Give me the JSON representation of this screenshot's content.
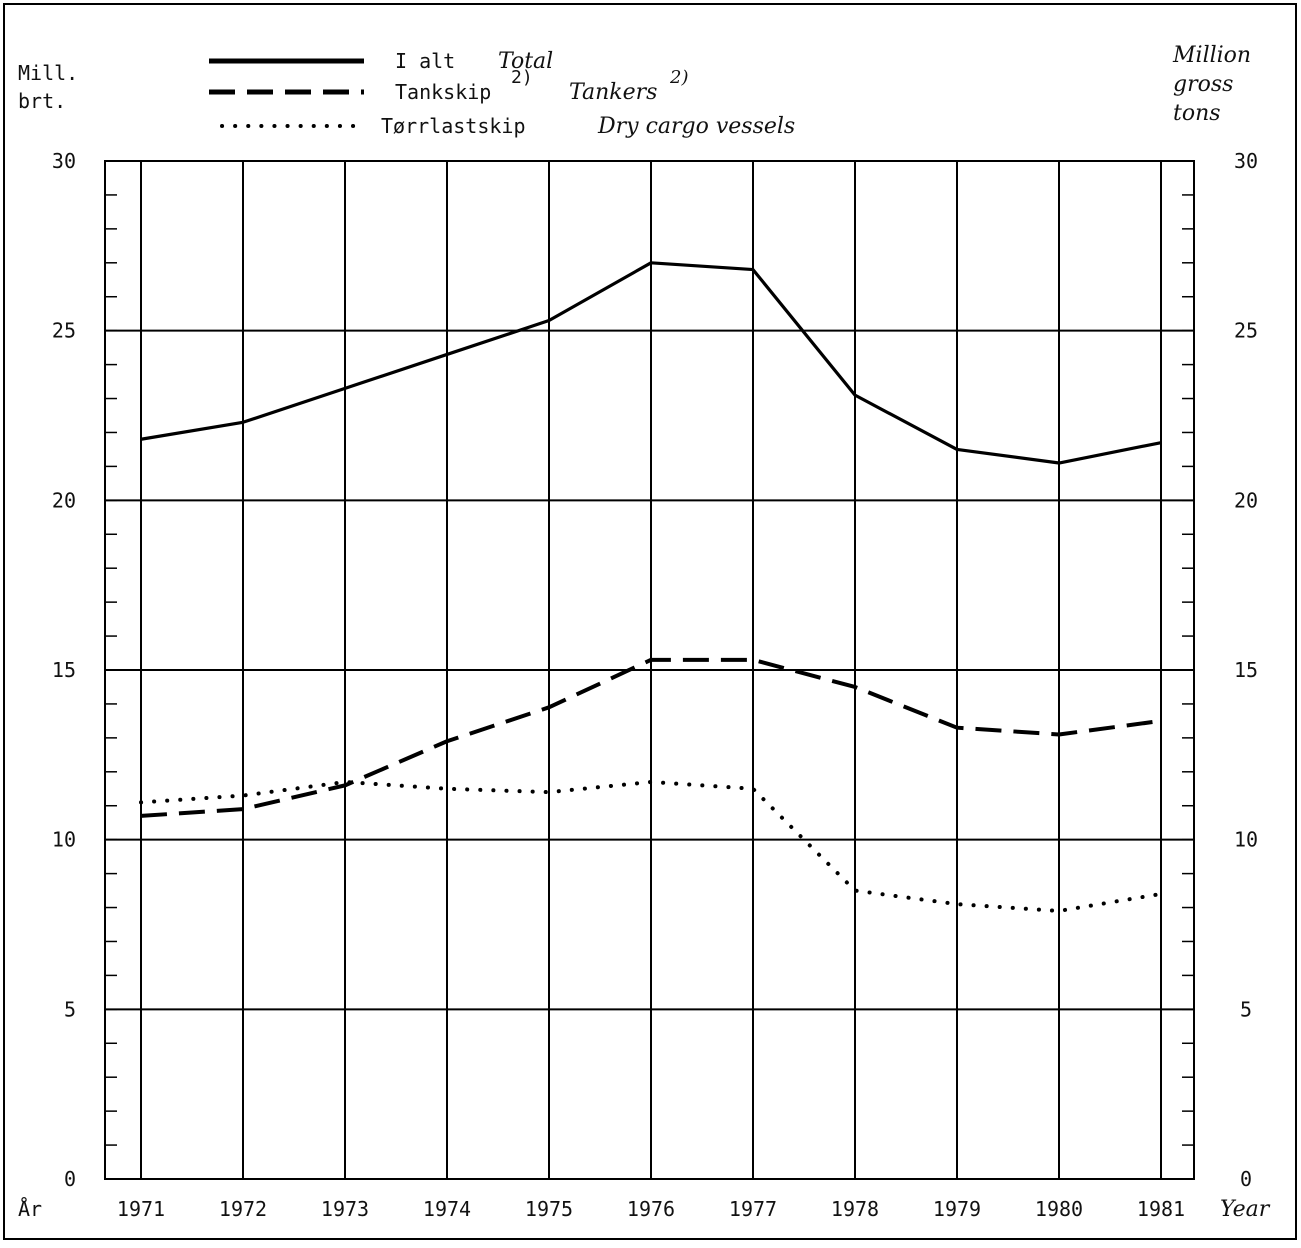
{
  "chart_data": {
    "type": "line",
    "title": "",
    "left_axis_label": [
      "Mill.",
      "brt."
    ],
    "right_axis_label": [
      "Million",
      "gross",
      "tons"
    ],
    "x_axis_label_left": "År",
    "x_axis_label_right": "Year",
    "x": [
      1971,
      1972,
      1973,
      1974,
      1975,
      1976,
      1977,
      1978,
      1979,
      1980,
      1981
    ],
    "x_tick_labels": [
      "1971",
      "1972",
      "1973",
      "1974",
      "1975",
      "1976",
      "1977",
      "1978",
      "1979",
      "1980",
      "1981"
    ],
    "y_ticks": [
      0,
      5,
      10,
      15,
      20,
      25,
      30
    ],
    "y_tick_labels": [
      "0",
      "5",
      "10",
      "15",
      "20",
      "25",
      "30"
    ],
    "ylim": [
      0,
      30
    ],
    "grid": true,
    "legend_position": "top",
    "series": [
      {
        "name": "I alt",
        "name_en": "Total",
        "style": "solid",
        "color": "#000000",
        "values": [
          21.8,
          22.3,
          23.3,
          24.3,
          25.3,
          27.0,
          26.8,
          23.1,
          21.5,
          21.1,
          21.7
        ]
      },
      {
        "name": "Tankskip",
        "name_sup": "2)",
        "name_en": "Tankers",
        "name_en_sup": "2)",
        "style": "dashed",
        "color": "#000000",
        "values": [
          10.7,
          10.9,
          11.6,
          12.9,
          13.9,
          15.3,
          15.3,
          14.5,
          13.3,
          13.1,
          13.5
        ]
      },
      {
        "name": "Tørrlastskip",
        "name_en": "Dry cargo vessels",
        "style": "dotted",
        "color": "#000000",
        "values": [
          11.1,
          11.3,
          11.7,
          11.5,
          11.4,
          11.7,
          11.5,
          8.5,
          8.1,
          7.9,
          8.4
        ]
      }
    ]
  }
}
